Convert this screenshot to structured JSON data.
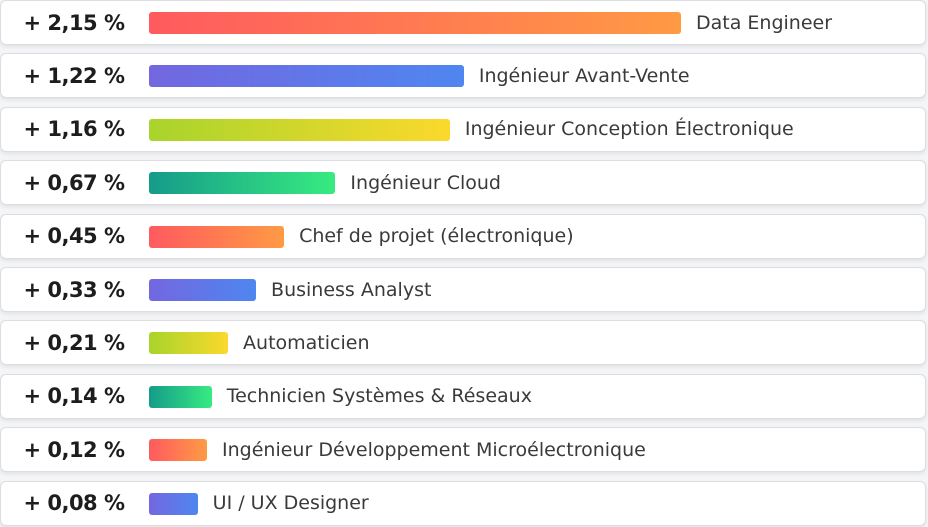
{
  "chart_data": {
    "type": "bar",
    "categories": [
      "Data Engineer",
      "Ingénieur Avant-Vente",
      "Ingénieur Conception Électronique",
      "Ingénieur Cloud",
      "Chef de projet (électronique)",
      "Business Analyst",
      "Automaticien",
      "Technicien Systèmes & Réseaux",
      "Ingénieur Développement Microélectronique",
      "UI / UX Designer"
    ],
    "values": [
      2.15,
      1.22,
      1.16,
      0.67,
      0.45,
      0.33,
      0.21,
      0.14,
      0.12,
      0.08
    ],
    "value_labels": [
      "+ 2,15 %",
      "+ 1,22 %",
      "+ 1,16 %",
      "+ 0,67 %",
      "+ 0,45 %",
      "+ 0,33 %",
      "+ 0,21 %",
      "+ 0,14 %",
      "+ 0,12 %",
      "+ 0,08 %"
    ],
    "colors": [
      [
        "#ff5a5f",
        "#ff9a44"
      ],
      [
        "#7367e0",
        "#4f86f0"
      ],
      [
        "#a8d42c",
        "#fbd92c"
      ],
      [
        "#159b8a",
        "#37eb80"
      ]
    ]
  }
}
